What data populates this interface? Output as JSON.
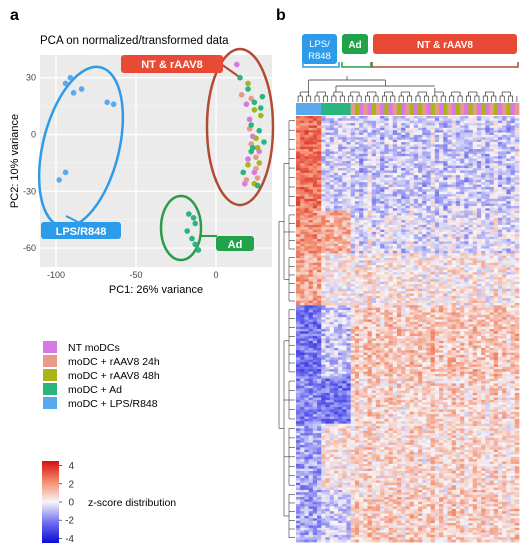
{
  "panels": {
    "a": "a",
    "b": "b"
  },
  "colors": {
    "nt": "#d977e6",
    "r24": "#e79a8a",
    "r48": "#a9b31a",
    "ad": "#2bb57e",
    "lps": "#59a9ee",
    "lps_box": "#2b9bea",
    "ad_box": "#23a24c",
    "nt_box": "#e84a36",
    "ellipse_lps": "#2f9be8",
    "ellipse_ad": "#2e9b48",
    "ellipse_nt": "#b34a34"
  },
  "chart_data": [
    {
      "type": "scatter",
      "title": "PCA on normalized/transformed data",
      "xlabel": "PC1: 26% variance",
      "ylabel": "PC2: 10% variance",
      "xlim": [
        -110,
        35
      ],
      "ylim": [
        -70,
        42
      ],
      "xticks": [
        -100,
        -50,
        0
      ],
      "yticks": [
        30,
        0,
        -30,
        -60
      ],
      "grid": true,
      "callouts": [
        "NT & rAAV8",
        "LPS/R848",
        "Ad"
      ],
      "legend": {
        "placement": "bottom",
        "entries": [
          "NT moDCs",
          "moDC + rAAV8 24h",
          "moDC + rAAV8 48h",
          "moDC + Ad",
          "moDC + LPS/R848"
        ]
      },
      "series": [
        {
          "name": "moDC + LPS/R848",
          "color_key": "lps",
          "points": [
            [
              -94,
              27
            ],
            [
              -91,
              30
            ],
            [
              -89,
              22
            ],
            [
              -84,
              24
            ],
            [
              -68,
              17
            ],
            [
              -64,
              16
            ],
            [
              -94,
              -20
            ],
            [
              -98,
              -24
            ]
          ]
        },
        {
          "name": "moDC + Ad",
          "color_key": "ad",
          "points": [
            [
              -17,
              -42
            ],
            [
              -14,
              -44
            ],
            [
              -13,
              -47
            ],
            [
              -18,
              -51
            ],
            [
              -15,
              -55
            ],
            [
              -13,
              -58
            ],
            [
              -11,
              -61
            ]
          ]
        },
        {
          "name": "NT moDCs",
          "color_key": "nt",
          "points": [
            [
              13,
              37
            ],
            [
              19,
              16
            ],
            [
              21,
              8
            ],
            [
              23,
              -1
            ],
            [
              20,
              -13
            ],
            [
              27,
              -9
            ],
            [
              24,
              -20
            ],
            [
              18,
              -26
            ]
          ]
        },
        {
          "name": "moDC + rAAV8 24h",
          "color_key": "r24",
          "points": [
            [
              21,
              3
            ],
            [
              22,
              -5
            ],
            [
              25,
              -12
            ],
            [
              25,
              -18
            ],
            [
              26,
              -23
            ],
            [
              19,
              -24
            ],
            [
              22,
              19
            ],
            [
              16,
              21
            ]
          ]
        },
        {
          "name": "moDC + rAAV8 48h",
          "color_key": "r48",
          "points": [
            [
              20,
              27
            ],
            [
              24,
              13
            ],
            [
              25,
              -2
            ],
            [
              26,
              -7
            ],
            [
              27,
              -15
            ],
            [
              24,
              -26
            ],
            [
              28,
              10
            ],
            [
              20,
              -16
            ]
          ]
        },
        {
          "name": "moDC + Ad",
          "color_key": "ad",
          "points": [
            [
              15,
              30
            ],
            [
              20,
              24
            ],
            [
              24,
              17
            ],
            [
              28,
              14
            ],
            [
              22,
              5
            ],
            [
              27,
              2
            ],
            [
              30,
              -4
            ],
            [
              23,
              -7
            ],
            [
              26,
              -27
            ],
            [
              17,
              -20
            ],
            [
              22,
              -9
            ],
            [
              29,
              20
            ]
          ]
        }
      ]
    },
    {
      "type": "heatmap",
      "groups": [
        "LPS/\nR848",
        "Ad",
        "NT & rAAV8"
      ],
      "group_labels": {
        "lps": "LPS/",
        "lps2": "R848",
        "ad": "Ad",
        "nt": "NT & rAAV8"
      },
      "colorbar": {
        "label": "z-score distribution",
        "ticks": [
          4,
          2,
          0,
          -2,
          -4
        ],
        "range": [
          -4.5,
          4.5
        ],
        "colors": [
          "#0b0bd6",
          "#6f6ff0",
          "#f7f5f7",
          "#f38b6c",
          "#d60f10"
        ]
      },
      "column_group_sequence": [
        "lps",
        "lps",
        "lps",
        "lps",
        "lps",
        "lps",
        "ad",
        "ad",
        "ad",
        "ad",
        "ad",
        "ad",
        "ad",
        "r24",
        "r48",
        "nt",
        "r24",
        "nt",
        "r48",
        "r24",
        "nt",
        "r48",
        "nt",
        "r24",
        "r48",
        "nt",
        "r24",
        "r48",
        "nt",
        "r48",
        "r24",
        "nt",
        "r48",
        "r24",
        "nt",
        "r48",
        "r24",
        "nt",
        "r48",
        "r24",
        "nt",
        "r48",
        "r24",
        "nt",
        "r48",
        "nt",
        "r24",
        "r48",
        "nt",
        "r24",
        "r48",
        "nt",
        "r24"
      ],
      "row_blocks": [
        {
          "rows": 40,
          "lps": 2.6,
          "ad": -0.6,
          "rest": -0.7
        },
        {
          "rows": 18,
          "lps": 2.0,
          "ad": 1.4,
          "rest": -0.4
        },
        {
          "rows": 22,
          "lps": 1.6,
          "ad": 0.2,
          "rest": 0.3
        },
        {
          "rows": 30,
          "lps": -2.2,
          "ad": -0.8,
          "rest": 1.0
        },
        {
          "rows": 20,
          "lps": -1.8,
          "ad": -2.2,
          "rest": 0.7
        },
        {
          "rows": 28,
          "lps": -1.4,
          "ad": 0.4,
          "rest": 0.6
        },
        {
          "rows": 22,
          "lps": -1.2,
          "ad": -0.6,
          "rest": 0.8
        }
      ]
    }
  ]
}
